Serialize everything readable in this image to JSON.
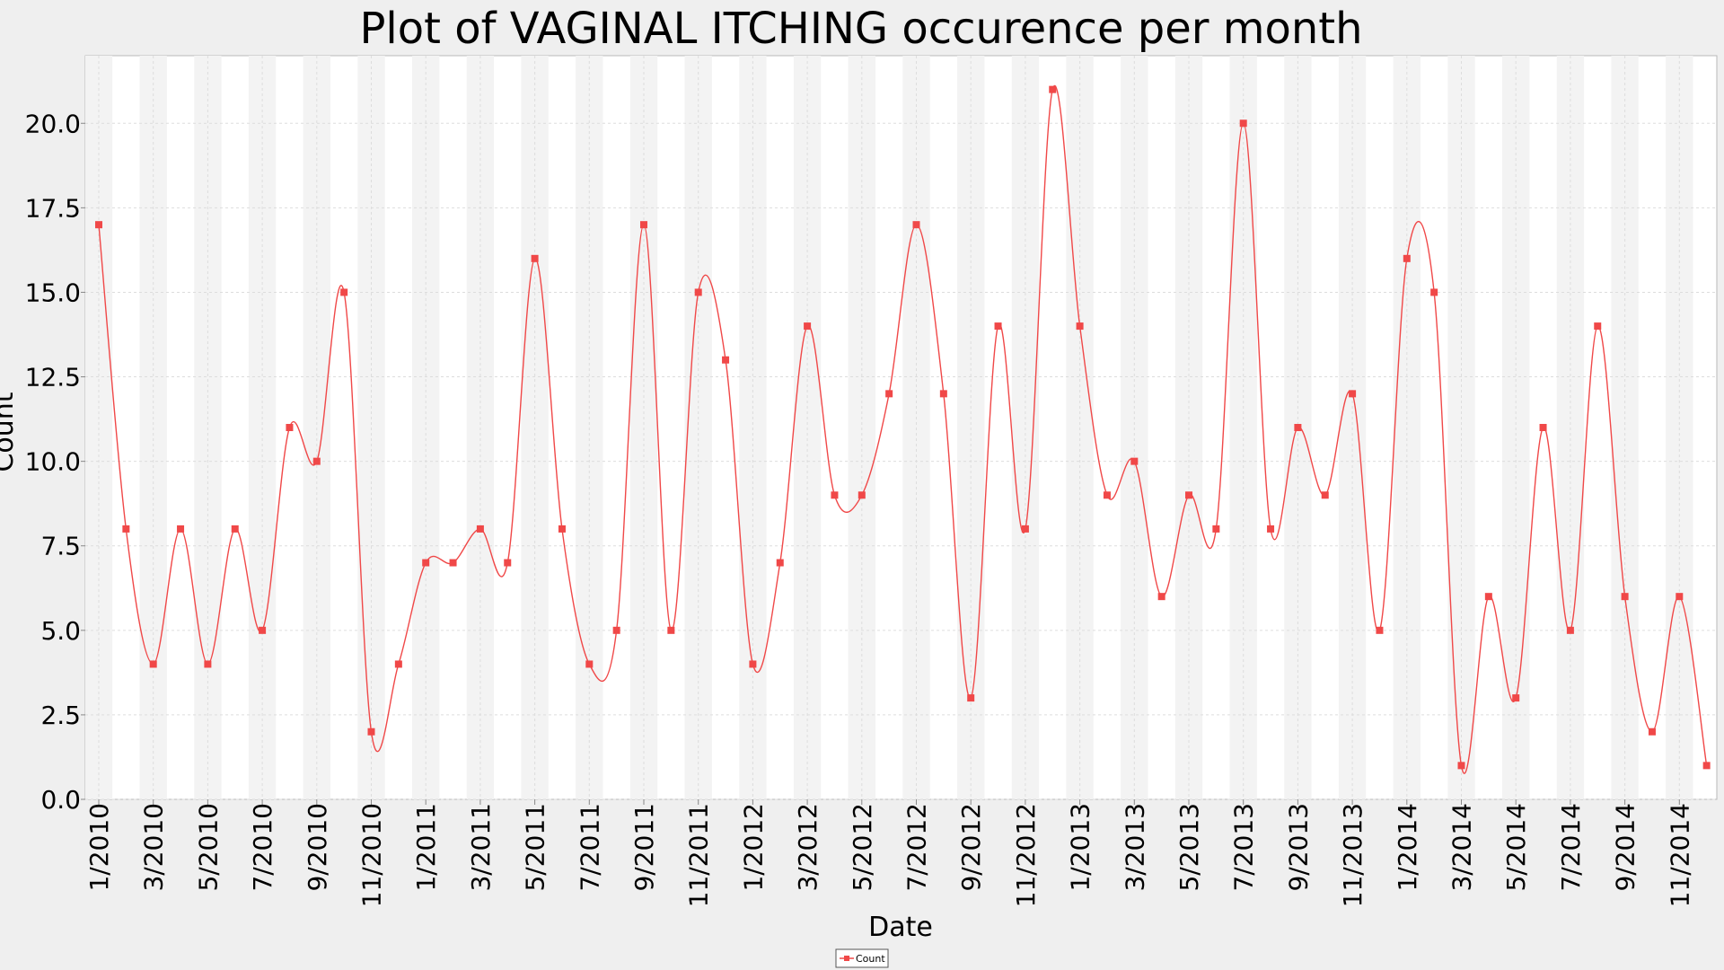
{
  "chart_data": {
    "type": "line",
    "title": "Plot of VAGINAL ITCHING occurence per month",
    "xlabel": "Date",
    "ylabel": "Count",
    "x": [
      "1/2010",
      "2/2010",
      "3/2010",
      "4/2010",
      "5/2010",
      "6/2010",
      "7/2010",
      "8/2010",
      "9/2010",
      "10/2010",
      "11/2010",
      "12/2010",
      "1/2011",
      "2/2011",
      "3/2011",
      "4/2011",
      "5/2011",
      "6/2011",
      "7/2011",
      "8/2011",
      "9/2011",
      "10/2011",
      "11/2011",
      "12/2011",
      "1/2012",
      "2/2012",
      "3/2012",
      "4/2012",
      "5/2012",
      "6/2012",
      "7/2012",
      "8/2012",
      "9/2012",
      "10/2012",
      "11/2012",
      "12/2012",
      "1/2013",
      "2/2013",
      "3/2013",
      "4/2013",
      "5/2013",
      "6/2013",
      "7/2013",
      "8/2013",
      "9/2013",
      "10/2013",
      "11/2013",
      "12/2013",
      "1/2014",
      "2/2014",
      "3/2014",
      "4/2014",
      "5/2014",
      "6/2014",
      "7/2014",
      "8/2014",
      "9/2014",
      "10/2014",
      "11/2014",
      "12/2014"
    ],
    "series": [
      {
        "name": "Count",
        "color": "#f04848",
        "values": [
          17,
          8,
          4,
          8,
          4,
          8,
          5,
          11,
          10,
          15,
          2,
          4,
          7,
          7,
          8,
          7,
          16,
          8,
          4,
          5,
          17,
          5,
          15,
          13,
          4,
          7,
          14,
          9,
          9,
          12,
          17,
          12,
          3,
          14,
          8,
          21,
          14,
          9,
          10,
          6,
          9,
          8,
          20,
          8,
          11,
          9,
          12,
          5,
          16,
          15,
          1,
          6,
          3,
          11,
          5,
          14,
          6,
          2,
          6,
          1
        ]
      }
    ],
    "xtick_labels": [
      "1/2010",
      "3/2010",
      "5/2010",
      "7/2010",
      "9/2010",
      "11/2010",
      "1/2011",
      "3/2011",
      "5/2011",
      "7/2011",
      "9/2011",
      "11/2011",
      "1/2012",
      "3/2012",
      "5/2012",
      "7/2012",
      "9/2012",
      "11/2012",
      "1/2013",
      "3/2013",
      "5/2013",
      "7/2013",
      "9/2013",
      "11/2013",
      "1/2014",
      "3/2014",
      "5/2014",
      "7/2014",
      "9/2014",
      "11/2014"
    ],
    "yticks": [
      "0.0",
      "2.5",
      "5.0",
      "7.5",
      "10.0",
      "12.5",
      "15.0",
      "17.5",
      "20.0"
    ],
    "ylim": [
      0,
      22
    ],
    "grid": true,
    "legend": {
      "placement": "bottom-center",
      "entries": [
        "Count"
      ]
    },
    "colors": {
      "background": "#efefef",
      "plot_bg": "#ffffff",
      "band_alt": "#f3f3f3",
      "series": "#f04848"
    }
  }
}
